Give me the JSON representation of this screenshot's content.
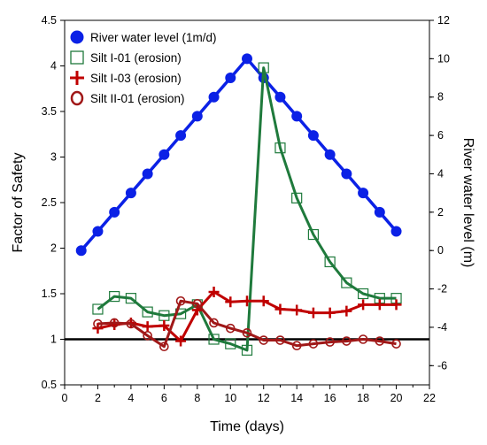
{
  "chart_data": {
    "type": "line",
    "xlabel": "Time (days)",
    "ylabel": "Factor of Safety",
    "y2label": "River water level (m)",
    "xlim": [
      0,
      22
    ],
    "ylim": [
      0.5,
      4.5
    ],
    "y2lim": [
      -7,
      12
    ],
    "x_ticks": [
      0,
      2,
      4,
      6,
      8,
      10,
      12,
      14,
      16,
      18,
      20,
      22
    ],
    "y_ticks": [
      0.5,
      1,
      1.5,
      2,
      2.5,
      3,
      3.5,
      4,
      4.5
    ],
    "y2_ticks": [
      -6,
      -4,
      -2,
      0,
      2,
      4,
      6,
      8,
      10,
      12
    ],
    "reference_line": {
      "y": 1.0,
      "color": "#000000"
    },
    "series": [
      {
        "name": "River water level (1m/d)",
        "axis": "right",
        "color": "#0b21e6",
        "marker": "filled-circle",
        "x": [
          1,
          2,
          3,
          4,
          5,
          6,
          7,
          8,
          9,
          10,
          11,
          12,
          13,
          14,
          15,
          16,
          17,
          18,
          19,
          20
        ],
        "y": [
          0,
          1,
          2,
          3,
          4,
          5,
          6,
          7,
          8,
          9,
          10,
          9,
          8,
          7,
          6,
          5,
          4,
          3,
          2,
          1
        ]
      },
      {
        "name": "Silt I-01 (erosion)",
        "axis": "left",
        "color": "#1f7a3c",
        "marker": "open-square",
        "x": [
          2,
          3,
          4,
          5,
          6,
          7,
          8,
          9,
          10,
          11,
          12,
          13,
          14,
          15,
          16,
          17,
          18,
          19,
          20
        ],
        "y": [
          1.33,
          1.47,
          1.45,
          1.3,
          1.26,
          1.28,
          1.38,
          1.0,
          0.95,
          0.88,
          3.98,
          3.1,
          2.55,
          2.15,
          1.85,
          1.62,
          1.5,
          1.45,
          1.45
        ]
      },
      {
        "name": "Silt I-03 (erosion)",
        "axis": "left",
        "color": "#c00000",
        "marker": "plus",
        "x": [
          2,
          3,
          4,
          5,
          6,
          7,
          8,
          9,
          10,
          11,
          12,
          13,
          14,
          15,
          16,
          17,
          18,
          19,
          20
        ],
        "y": [
          1.12,
          1.16,
          1.18,
          1.14,
          1.15,
          0.98,
          1.32,
          1.52,
          1.41,
          1.42,
          1.42,
          1.33,
          1.32,
          1.29,
          1.29,
          1.31,
          1.38,
          1.38,
          1.38
        ]
      },
      {
        "name": "Silt II-01 (erosion)",
        "axis": "left",
        "color": "#a01818",
        "marker": "open-circle",
        "x": [
          2,
          3,
          4,
          5,
          6,
          7,
          8,
          9,
          10,
          11,
          12,
          13,
          14,
          15,
          16,
          17,
          18,
          19,
          20
        ],
        "y": [
          1.17,
          1.18,
          1.17,
          1.04,
          0.92,
          1.42,
          1.39,
          1.18,
          1.12,
          1.07,
          0.99,
          0.99,
          0.93,
          0.95,
          0.97,
          0.98,
          1.0,
          0.98,
          0.95
        ]
      }
    ],
    "legend": {
      "position": "top-left"
    }
  }
}
